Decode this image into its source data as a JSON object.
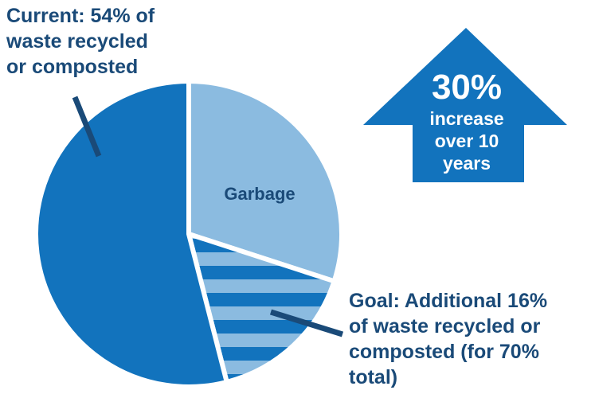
{
  "chart_data": {
    "type": "pie",
    "slices": [
      {
        "label": "Current: 54% of waste recycled or composted",
        "value": 54,
        "color": "#1273bd",
        "pattern": "solid"
      },
      {
        "label": "Goal: Additional 16% of waste recycled or composted (for 70% total)",
        "value": 16,
        "color": "#1273bd",
        "pattern": "striped",
        "stripe_color": "#8bbbe0"
      },
      {
        "label": "Garbage",
        "value": 30,
        "color": "#8bbbe0",
        "pattern": "solid"
      }
    ],
    "annotations": {
      "current": [
        "Current: 54% of",
        "waste recycled",
        "or composted"
      ],
      "goal": [
        "Goal: Additional 16%",
        "of waste recycled or",
        "composted (for 70%",
        "total)"
      ],
      "garbage": "Garbage"
    },
    "callout": {
      "shape": "up-arrow",
      "value": "30%",
      "lines": [
        "increase",
        "over 10",
        "years"
      ],
      "color": "#1273bd"
    }
  }
}
